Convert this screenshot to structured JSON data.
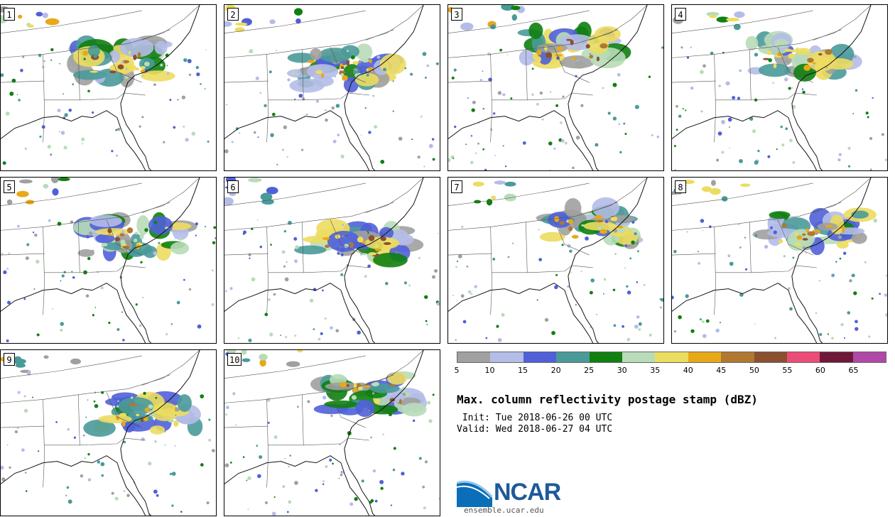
{
  "figure": {
    "title": "Max. column reflectivity postage stamp (dBZ)",
    "init": " Init: Tue 2018-06-26 00 UTC",
    "valid": "Valid: Wed 2018-06-27 04 UTC"
  },
  "panels": [
    {
      "label": "1"
    },
    {
      "label": "2"
    },
    {
      "label": "3"
    },
    {
      "label": "4"
    },
    {
      "label": "5"
    },
    {
      "label": "6"
    },
    {
      "label": "7"
    },
    {
      "label": "8"
    },
    {
      "label": "9"
    },
    {
      "label": "10"
    }
  ],
  "colorbar": {
    "ticks": [
      "5",
      "10",
      "15",
      "20",
      "25",
      "30",
      "35",
      "40",
      "45",
      "50",
      "55",
      "60",
      "65"
    ],
    "colors": [
      "#a0a0a0",
      "#b4bce8",
      "#5060d8",
      "#4a9a9a",
      "#108010",
      "#b8dcb8",
      "#ecdc60",
      "#e8a818",
      "#b07830",
      "#8a5030",
      "#ec4c78",
      "#701838",
      "#b048a8"
    ]
  },
  "logo": {
    "name": "NCAR",
    "url": "ensemble.ucar.edu"
  }
}
